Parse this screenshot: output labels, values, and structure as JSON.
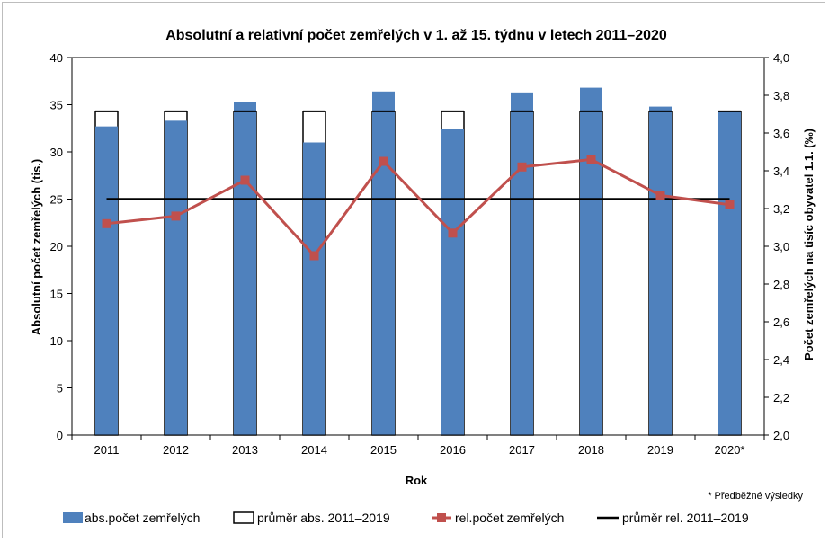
{
  "chart_data": {
    "type": "bar",
    "title": "Absolutní a relativní počet zemřelých v 1. až 15. týdnu v letech 2011–2020",
    "xlabel": "Rok",
    "ylabel": "Absolutní počet zemřelých (tis.)",
    "y2label": "Počet zemřelých na tisíc obyvatel 1.1. (‰)",
    "categories": [
      "2011",
      "2012",
      "2013",
      "2014",
      "2015",
      "2016",
      "2017",
      "2018",
      "2019",
      "2020*"
    ],
    "ylim": [
      0,
      40
    ],
    "y2lim": [
      2.0,
      4.0
    ],
    "yticks": [
      "0",
      "5",
      "10",
      "15",
      "20",
      "25",
      "30",
      "35",
      "40"
    ],
    "y2ticks": [
      "2,0",
      "2,2",
      "2,4",
      "2,6",
      "2,8",
      "3,0",
      "3,2",
      "3,4",
      "3,6",
      "3,8",
      "4,0"
    ],
    "series": [
      {
        "name": "abs.počet zemřelých",
        "type": "bar",
        "axis": "left",
        "color": "#4f81bd",
        "values": [
          32.7,
          33.3,
          35.3,
          31.0,
          36.4,
          32.4,
          36.3,
          36.8,
          34.8,
          34.3
        ]
      },
      {
        "name": "průměr abs. 2011–2019",
        "type": "bar-outline",
        "axis": "left",
        "color": "#000000",
        "values": [
          34.3,
          34.3,
          34.3,
          34.3,
          34.3,
          34.3,
          34.3,
          34.3,
          34.3,
          34.3
        ]
      },
      {
        "name": "rel.počet zemřelých",
        "type": "line",
        "axis": "right",
        "color": "#c0504d",
        "values": [
          3.12,
          3.16,
          3.35,
          2.95,
          3.45,
          3.07,
          3.42,
          3.46,
          3.27,
          3.22
        ]
      },
      {
        "name": "průměr rel. 2011–2019",
        "type": "line",
        "axis": "right",
        "color": "#000000",
        "values": [
          3.25,
          3.25,
          3.25,
          3.25,
          3.25,
          3.25,
          3.25,
          3.25,
          3.25,
          3.25
        ]
      }
    ],
    "note": "* Předběžné výsledky",
    "grid": false,
    "legend": "bottom"
  }
}
